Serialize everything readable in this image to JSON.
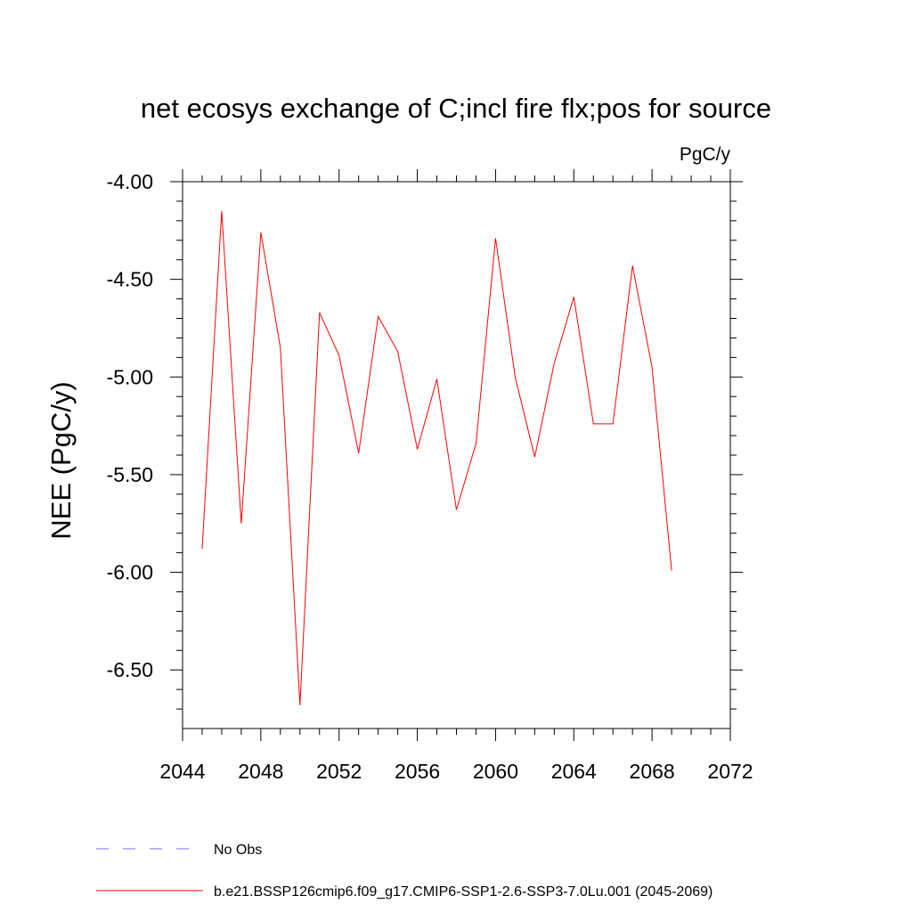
{
  "chart_data": {
    "type": "line",
    "title": "net ecosys exchange of C;incl fire flx;pos for source",
    "units": "PgC/y",
    "ylabel": "NEE  (PgC/y)",
    "xlabel": "",
    "xlim": [
      2044,
      2072
    ],
    "ylim": [
      -6.8,
      -4.0
    ],
    "xticks": [
      2044,
      2048,
      2052,
      2056,
      2060,
      2064,
      2068,
      2072
    ],
    "xtick_labels": [
      "2044",
      "2048",
      "2052",
      "2056",
      "2060",
      "2064",
      "2068",
      "2072"
    ],
    "yticks": [
      -4.0,
      -4.5,
      -5.0,
      -5.5,
      -6.0,
      -6.5
    ],
    "ytick_labels": [
      "-4.00",
      "-4.50",
      "-5.00",
      "-5.50",
      "-6.00",
      "-6.50"
    ],
    "grid": false,
    "legend_position": "bottom",
    "series": [
      {
        "name": "b.e21.BSSP126cmip6.f09_g17.CMIP6-SSP1-2.6-SSP3-7.0Lu.001 (2045-2069)",
        "color": "#ff0000",
        "dash": "solid",
        "x": [
          2045,
          2046,
          2047,
          2048,
          2049,
          2050,
          2051,
          2052,
          2053,
          2054,
          2055,
          2056,
          2057,
          2058,
          2059,
          2060,
          2061,
          2062,
          2063,
          2064,
          2065,
          2066,
          2067,
          2068,
          2069
        ],
        "y": [
          -5.88,
          -4.15,
          -5.75,
          -4.26,
          -4.85,
          -6.68,
          -4.67,
          -4.89,
          -5.39,
          -4.69,
          -4.87,
          -5.37,
          -5.01,
          -5.68,
          -5.34,
          -4.29,
          -5.0,
          -5.41,
          -4.93,
          -4.59,
          -5.24,
          -5.24,
          -4.43,
          -4.95,
          -5.99
        ]
      }
    ],
    "legend": [
      {
        "label": "No Obs",
        "color": "#7b68ee",
        "dash": "dashed"
      },
      {
        "label": "b.e21.BSSP126cmip6.f09_g17.CMIP6-SSP1-2.6-SSP3-7.0Lu.001 (2045-2069)",
        "color": "#ff0000",
        "dash": "solid"
      }
    ]
  }
}
